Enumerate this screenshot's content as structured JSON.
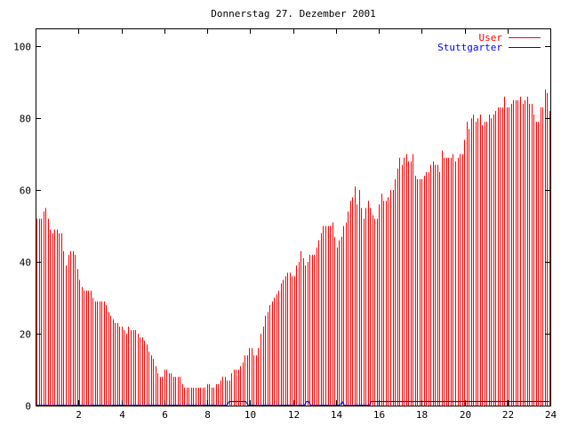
{
  "chart_data": {
    "type": "bar",
    "title": "Donnerstag 27. Dezember 2001",
    "xlabel": "",
    "ylabel": "",
    "xlim": [
      0,
      24
    ],
    "ylim": [
      0,
      105
    ],
    "x_ticks": [
      "2",
      "4",
      "6",
      "8",
      "10",
      "12",
      "14",
      "16",
      "18",
      "20",
      "22",
      "24"
    ],
    "y_ticks": [
      "0",
      "20",
      "40",
      "60",
      "80",
      "100"
    ],
    "grid": false,
    "legend_position": "top-right",
    "series": [
      {
        "name": "User",
        "color": "#ff0000",
        "style": "impulses",
        "values": [
          52,
          52,
          52,
          54,
          55,
          52,
          49,
          48,
          49,
          49,
          48,
          48,
          43,
          39,
          42,
          43,
          43,
          42,
          38,
          35,
          33,
          32,
          32,
          32,
          32,
          30,
          29,
          29,
          29,
          29,
          29,
          28,
          26,
          25,
          24,
          23,
          23,
          22,
          22,
          21,
          20,
          22,
          21,
          21,
          21,
          20,
          19,
          19,
          18,
          17,
          15,
          14,
          13,
          11,
          9,
          8,
          8,
          10,
          10,
          9,
          9,
          8,
          8,
          8,
          8,
          6,
          5,
          5,
          5,
          5,
          5,
          5,
          5,
          5,
          5,
          5,
          6,
          6,
          5,
          5,
          6,
          6,
          7,
          8,
          8,
          7,
          7,
          9,
          10,
          10,
          10,
          11,
          12,
          14,
          14,
          16,
          16,
          14,
          14,
          16,
          20,
          22,
          25,
          26,
          28,
          29,
          30,
          31,
          32,
          34,
          35,
          36,
          37,
          37,
          36,
          36,
          39,
          40,
          43,
          41,
          39,
          40,
          42,
          42,
          42,
          44,
          46,
          48,
          50,
          50,
          50,
          50,
          51,
          47,
          44,
          46,
          47,
          50,
          51,
          54,
          57,
          58,
          61,
          56,
          60,
          55,
          52,
          55,
          57,
          55,
          53,
          52,
          52,
          56,
          59,
          57,
          57,
          58,
          60,
          60,
          63,
          66,
          69,
          67,
          69,
          70,
          68,
          68,
          70,
          64,
          63,
          63,
          63,
          64,
          65,
          65,
          67,
          68,
          67,
          67,
          65,
          71,
          69,
          69,
          69,
          69,
          70,
          68,
          69,
          70,
          70,
          74,
          79,
          77,
          80,
          81,
          79,
          80,
          81,
          78,
          79,
          79,
          81,
          80,
          81,
          82,
          83,
          83,
          83,
          86,
          83,
          83,
          84,
          85,
          85,
          85,
          86,
          84,
          85,
          86,
          84,
          84,
          81,
          79,
          79,
          83,
          83,
          88,
          87,
          82
        ],
        "comment_values": "pseudo"
      },
      {
        "name": "Stuttgarter",
        "color": "#0000ff",
        "style": "line",
        "values": [
          0,
          0,
          0,
          0,
          0,
          0,
          0,
          0,
          0,
          0,
          0,
          0,
          0,
          0,
          0,
          0,
          0,
          0,
          0,
          0,
          0,
          0,
          0,
          0,
          0,
          0,
          0,
          0,
          0,
          0,
          0,
          0,
          0,
          0,
          0,
          0,
          0,
          0,
          0,
          0,
          0,
          0,
          0,
          0,
          0,
          0,
          0,
          0,
          0,
          0,
          0,
          0,
          0,
          0,
          0,
          0,
          0,
          0,
          0,
          0,
          0,
          0,
          0,
          0,
          0,
          0,
          0,
          0,
          0,
          0,
          0,
          0,
          0,
          0,
          0,
          0,
          0,
          0,
          0,
          0,
          0,
          0,
          0,
          0,
          0,
          0,
          0,
          0,
          0,
          0,
          0,
          0,
          1,
          1,
          1,
          1,
          1,
          1,
          1,
          1,
          1,
          0,
          0,
          0,
          0,
          0,
          0,
          0,
          0,
          0,
          0,
          0,
          0,
          0,
          0,
          0,
          0,
          0,
          0,
          0,
          0,
          0,
          0,
          0,
          0,
          0,
          0,
          0,
          0,
          1,
          1,
          0,
          0,
          0,
          0,
          0,
          0,
          0,
          0,
          0,
          0,
          0,
          0,
          0,
          0,
          0,
          1,
          0,
          0,
          0,
          0,
          0,
          0,
          0,
          0,
          0,
          0,
          0,
          0,
          0,
          1,
          1,
          1,
          1,
          1,
          1,
          1,
          1,
          1,
          1,
          1,
          1,
          1,
          1,
          1,
          1,
          1,
          1,
          1,
          1,
          1,
          1,
          1,
          1,
          1,
          1,
          1,
          1,
          1,
          1,
          1,
          1,
          1,
          1,
          1,
          1,
          1,
          1,
          1,
          1,
          1,
          1,
          1,
          1,
          1,
          1,
          1,
          1,
          1,
          1,
          1,
          1,
          1,
          1,
          1,
          1,
          1,
          1,
          1,
          1,
          1,
          1,
          1,
          1,
          1,
          1,
          1,
          1,
          1,
          1,
          1,
          1,
          1,
          1,
          1,
          1,
          1,
          1,
          1,
          1,
          1,
          1,
          1,
          1,
          1,
          1
        ]
      }
    ]
  }
}
